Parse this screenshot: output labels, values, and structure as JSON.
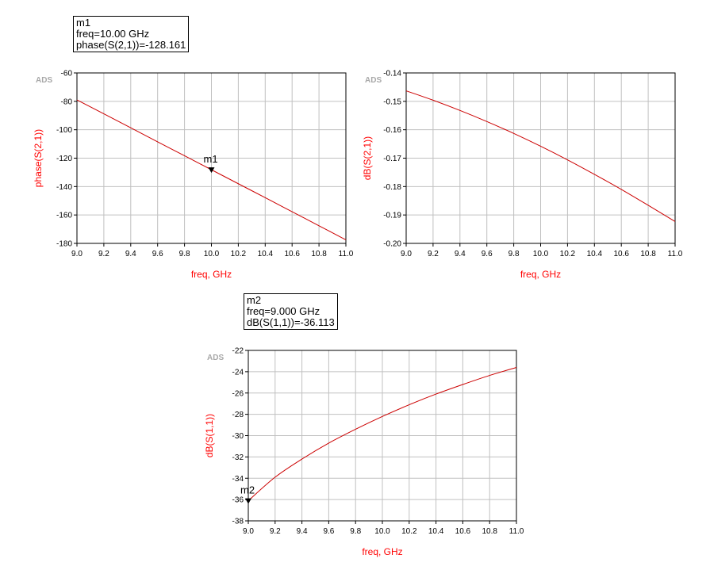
{
  "colors": {
    "trace": "#cc0000",
    "axis_label": "#ff0000",
    "grid": "#c0c0c0",
    "frame": "#000000",
    "tick_text": "#000000",
    "watermark": "#a8a8a8"
  },
  "marker_boxes": [
    {
      "lines": [
        "m1",
        "freq=10.00 GHz",
        "phase(S(2,1))=-128.161"
      ]
    },
    {
      "lines": [
        "m2",
        "freq=9.000 GHz",
        "dB(S(1,1))=-36.113"
      ]
    }
  ],
  "chart_data": [
    {
      "type": "line",
      "watermark": "ADS",
      "xlabel": "freq, GHz",
      "ylabel": "phase(S(2,1))",
      "xlim": [
        9.0,
        11.0
      ],
      "ylim": [
        -180,
        -60
      ],
      "x_ticks": [
        "9.0",
        "9.2",
        "9.4",
        "9.6",
        "9.8",
        "10.0",
        "10.2",
        "10.4",
        "10.6",
        "10.8",
        "11.0"
      ],
      "y_ticks": [
        "-60",
        "-80",
        "-100",
        "-120",
        "-140",
        "-160",
        "-180"
      ],
      "x": [
        9.0,
        9.2,
        9.4,
        9.6,
        9.8,
        10.0,
        10.2,
        10.4,
        10.6,
        10.8,
        11.0
      ],
      "series": [
        {
          "values": [
            -79,
            -88.8,
            -98.6,
            -108.5,
            -118.3,
            -128.161,
            -138.0,
            -147.8,
            -157.7,
            -167.6,
            -177.5
          ]
        }
      ],
      "grid": true,
      "marker": {
        "label": "m1",
        "x": 10.0,
        "y": -128.161
      }
    },
    {
      "type": "line",
      "watermark": "ADS",
      "xlabel": "freq, GHz",
      "ylabel": "dB(S(2,1))",
      "xlim": [
        9.0,
        11.0
      ],
      "ylim": [
        -0.2,
        -0.14
      ],
      "x_ticks": [
        "9.0",
        "9.2",
        "9.4",
        "9.6",
        "9.8",
        "10.0",
        "10.2",
        "10.4",
        "10.6",
        "10.8",
        "11.0"
      ],
      "y_ticks": [
        "-0.14",
        "-0.15",
        "-0.16",
        "-0.17",
        "-0.18",
        "-0.19",
        "-0.20"
      ],
      "x": [
        9.0,
        9.2,
        9.4,
        9.6,
        9.8,
        10.0,
        10.2,
        10.4,
        10.6,
        10.8,
        11.0
      ],
      "series": [
        {
          "values": [
            -0.1463,
            -0.1496,
            -0.1532,
            -0.1571,
            -0.1613,
            -0.1658,
            -0.1706,
            -0.1757,
            -0.181,
            -0.1866,
            -0.1923
          ]
        }
      ],
      "grid": true
    },
    {
      "type": "line",
      "watermark": "ADS",
      "xlabel": "freq, GHz",
      "ylabel": "dB(S(1,1))",
      "xlim": [
        9.0,
        11.0
      ],
      "ylim": [
        -38,
        -22
      ],
      "x_ticks": [
        "9.0",
        "9.2",
        "9.4",
        "9.6",
        "9.8",
        "10.0",
        "10.2",
        "10.4",
        "10.6",
        "10.8",
        "11.0"
      ],
      "y_ticks": [
        "-22",
        "-24",
        "-26",
        "-28",
        "-30",
        "-32",
        "-34",
        "-36",
        "-38"
      ],
      "x": [
        9.0,
        9.2,
        9.4,
        9.6,
        9.8,
        10.0,
        10.2,
        10.4,
        10.6,
        10.8,
        11.0
      ],
      "series": [
        {
          "values": [
            -36.113,
            -33.9,
            -32.2,
            -30.7,
            -29.4,
            -28.2,
            -27.1,
            -26.1,
            -25.2,
            -24.35,
            -23.6
          ]
        }
      ],
      "grid": true,
      "marker": {
        "label": "m2",
        "x": 9.0,
        "y": -36.113
      }
    }
  ]
}
